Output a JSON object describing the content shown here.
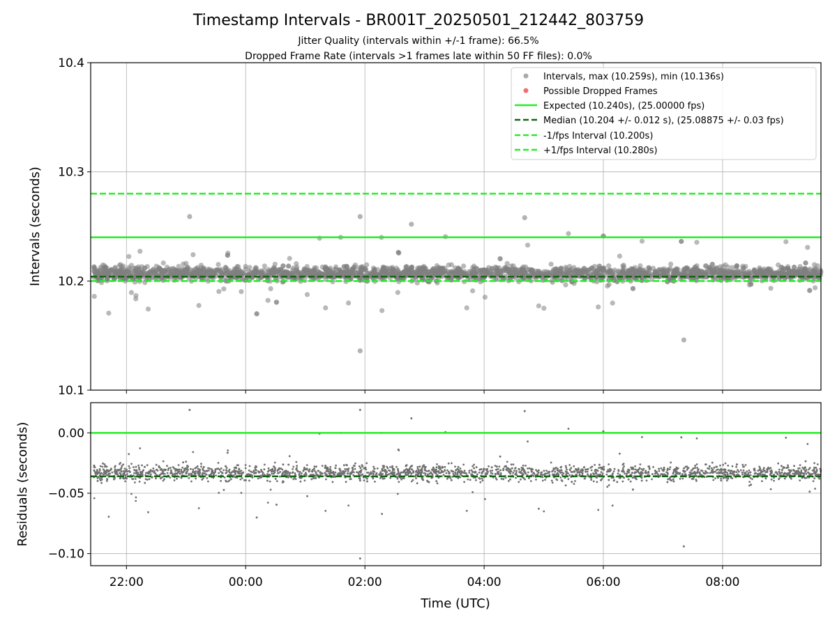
{
  "chart_data": [
    {
      "type": "scatter",
      "title": "Timestamp Intervals - BR001T_20250501_212442_803759",
      "subtitles": [
        "Jitter Quality (intervals within +/-1 frame): 66.5%",
        "Dropped Frame Rate (intervals >1 frames late within 50 FF files): 0.0%"
      ],
      "xlabel": "",
      "ylabel": "Intervals (seconds)",
      "xlim_hours": [
        -2.6,
        9.65
      ],
      "ylim": [
        10.1,
        10.4
      ],
      "yticks": [
        "10.1",
        "10.2",
        "10.3",
        "10.4"
      ],
      "grid": true,
      "legend_position": "top-right",
      "legend": [
        {
          "label": "Intervals, max (10.259s), min (10.136s)",
          "kind": "marker",
          "color": "#a9a9a9"
        },
        {
          "label": "Possible Dropped Frames",
          "kind": "marker",
          "color": "#f07070"
        },
        {
          "label": "Expected (10.240s), (25.00000 fps)",
          "kind": "solid",
          "color": "#22ee22"
        },
        {
          "label": "Median (10.204 +/- 0.012 s), (25.08875 +/- 0.03 fps)",
          "kind": "dashed",
          "color": "#116611"
        },
        {
          "label": "-1/fps Interval (10.200s)",
          "kind": "dashed",
          "color": "#22ee22"
        },
        {
          "label": "+1/fps Interval (10.280s)",
          "kind": "dashed",
          "color": "#22ee22"
        }
      ],
      "reference_lines": [
        {
          "name": "expected",
          "y": 10.24,
          "style": "solid",
          "color": "#22ee22"
        },
        {
          "name": "median",
          "y": 10.204,
          "style": "dashed",
          "color": "#116611"
        },
        {
          "name": "minus_fps",
          "y": 10.2,
          "style": "dashed",
          "color": "#22ee22"
        },
        {
          "name": "plus_fps",
          "y": 10.28,
          "style": "dashed",
          "color": "#22ee22"
        }
      ],
      "series": {
        "time_start_hours": -2.55,
        "time_end_hours": 9.65,
        "center": 10.207,
        "spread_sd": 0.008,
        "point_color": "#808080",
        "notable_points": [
          {
            "t": 1.92,
            "y": 10.136
          },
          {
            "t": 1.92,
            "y": 10.259
          },
          {
            "t": 4.68,
            "y": 10.258
          },
          {
            "t": 7.35,
            "y": 10.146
          },
          {
            "t": -0.94,
            "y": 10.259
          },
          {
            "t": 2.78,
            "y": 10.252
          }
        ]
      }
    },
    {
      "type": "scatter",
      "title": "",
      "xlabel": "Time (UTC)",
      "ylabel": "Residuals (seconds)",
      "ylim": [
        -0.11,
        0.025
      ],
      "yticks": [
        {
          "v": 0.0,
          "label": "0.00"
        },
        {
          "v": -0.05,
          "label": "−0.05"
        },
        {
          "v": -0.1,
          "label": "−0.10"
        }
      ],
      "xticks": [
        {
          "h": -2,
          "label": "22:00"
        },
        {
          "h": 0,
          "label": "00:00"
        },
        {
          "h": 2,
          "label": "02:00"
        },
        {
          "h": 4,
          "label": "04:00"
        },
        {
          "h": 6,
          "label": "06:00"
        },
        {
          "h": 8,
          "label": "08:00"
        }
      ],
      "reference_lines": [
        {
          "name": "zero",
          "y": 0.0,
          "style": "solid",
          "color": "#22ee22"
        },
        {
          "name": "median_residual",
          "y": -0.036,
          "style": "dashed",
          "color": "#116611"
        }
      ],
      "series": {
        "point_color": "#707070",
        "derived_from": "intervals minus expected"
      }
    }
  ]
}
